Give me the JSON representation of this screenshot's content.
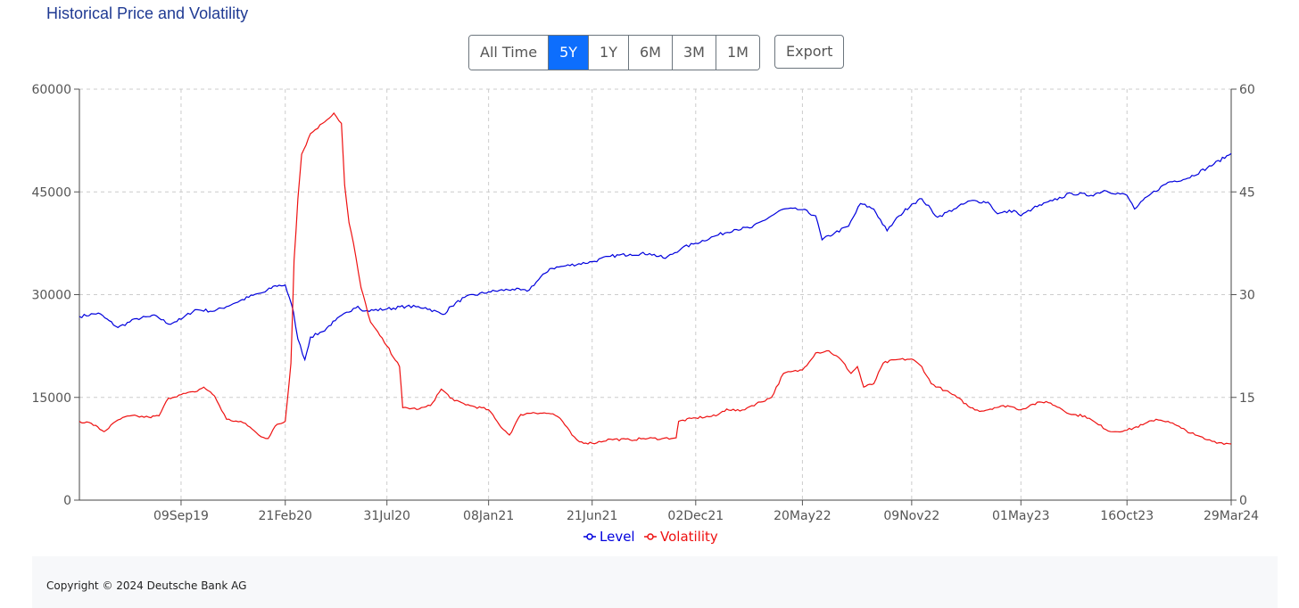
{
  "page": {
    "title": "Historical Price and Volatility",
    "range_buttons": [
      "All Time",
      "5Y",
      "1Y",
      "6M",
      "3M",
      "1M"
    ],
    "active_range": "5Y",
    "export_label": "Export",
    "footer": "Copyright © 2024 Deutsche Bank AG"
  },
  "chart_data": {
    "type": "line",
    "x_tick_labels": [
      "09Sep19",
      "21Feb20",
      "31Jul20",
      "08Jan21",
      "21Jun21",
      "02Dec21",
      "20May22",
      "09Nov22",
      "01May23",
      "16Oct23",
      "29Mar24"
    ],
    "y_left": {
      "ticks": [
        "0",
        "15000",
        "30000",
        "45000",
        "60000"
      ],
      "range": [
        0,
        60000
      ]
    },
    "y_right": {
      "ticks": [
        "0",
        "15",
        "30",
        "45",
        "60"
      ],
      "range": [
        0,
        60
      ]
    },
    "grid": true,
    "legend_position": "bottom-center",
    "colors": {
      "level": "#0000dd",
      "volatility": "#ee1111"
    },
    "series": [
      {
        "name": "Level",
        "axis": "left",
        "points": [
          [
            "2019-04-01",
            26800
          ],
          [
            "2019-05-01",
            27300
          ],
          [
            "2019-06-01",
            25200
          ],
          [
            "2019-07-01",
            26500
          ],
          [
            "2019-08-01",
            26900
          ],
          [
            "2019-08-20",
            25700
          ],
          [
            "2019-09-09",
            26400
          ],
          [
            "2019-10-01",
            27800
          ],
          [
            "2019-11-01",
            27600
          ],
          [
            "2019-12-01",
            28700
          ],
          [
            "2020-01-01",
            29900
          ],
          [
            "2020-01-20",
            30400
          ],
          [
            "2020-02-05",
            31300
          ],
          [
            "2020-02-21",
            31400
          ],
          [
            "2020-03-05",
            27500
          ],
          [
            "2020-03-12",
            23500
          ],
          [
            "2020-03-23",
            20500
          ],
          [
            "2020-04-01",
            23800
          ],
          [
            "2020-04-20",
            24600
          ],
          [
            "2020-05-10",
            26200
          ],
          [
            "2020-06-08",
            28000
          ],
          [
            "2020-06-15",
            28300
          ],
          [
            "2020-06-26",
            27600
          ],
          [
            "2020-07-31",
            27900
          ],
          [
            "2020-08-31",
            28300
          ],
          [
            "2020-09-30",
            28100
          ],
          [
            "2020-10-28",
            27100
          ],
          [
            "2020-11-10",
            28300
          ],
          [
            "2020-12-01",
            29600
          ],
          [
            "2021-01-08",
            30400
          ],
          [
            "2021-02-15",
            30800
          ],
          [
            "2021-03-10",
            30500
          ],
          [
            "2021-04-15",
            33800
          ],
          [
            "2021-05-10",
            34200
          ],
          [
            "2021-06-21",
            34800
          ],
          [
            "2021-07-20",
            35600
          ],
          [
            "2021-08-20",
            35900
          ],
          [
            "2021-09-20",
            36000
          ],
          [
            "2021-10-15",
            35300
          ],
          [
            "2021-11-10",
            36800
          ],
          [
            "2021-12-02",
            37500
          ],
          [
            "2022-01-03",
            38600
          ],
          [
            "2022-02-01",
            39500
          ],
          [
            "2022-03-01",
            39800
          ],
          [
            "2022-04-01",
            41500
          ],
          [
            "2022-04-20",
            42500
          ],
          [
            "2022-05-20",
            42400
          ],
          [
            "2022-06-10",
            41500
          ],
          [
            "2022-06-20",
            38000
          ],
          [
            "2022-07-10",
            39000
          ],
          [
            "2022-08-01",
            40000
          ],
          [
            "2022-08-20",
            43300
          ],
          [
            "2022-09-10",
            42500
          ],
          [
            "2022-10-01",
            39300
          ],
          [
            "2022-10-20",
            41500
          ],
          [
            "2022-11-09",
            43200
          ],
          [
            "2022-11-25",
            44000
          ],
          [
            "2022-12-20",
            41300
          ],
          [
            "2023-01-15",
            42500
          ],
          [
            "2023-02-10",
            43700
          ],
          [
            "2023-03-10",
            43500
          ],
          [
            "2023-03-25",
            41800
          ],
          [
            "2023-04-20",
            42300
          ],
          [
            "2023-05-01",
            41500
          ],
          [
            "2023-05-20",
            42600
          ],
          [
            "2023-06-20",
            43700
          ],
          [
            "2023-07-20",
            44800
          ],
          [
            "2023-08-20",
            44500
          ],
          [
            "2023-09-10",
            45200
          ],
          [
            "2023-10-16",
            44500
          ],
          [
            "2023-10-28",
            42500
          ],
          [
            "2023-11-20",
            44500
          ],
          [
            "2023-12-20",
            46400
          ],
          [
            "2024-01-20",
            47000
          ],
          [
            "2024-02-20",
            48500
          ],
          [
            "2024-03-29",
            50600
          ]
        ]
      },
      {
        "name": "Volatility",
        "axis": "right",
        "points": [
          [
            "2019-04-01",
            11.5
          ],
          [
            "2019-04-20",
            11.2
          ],
          [
            "2019-05-10",
            10.0
          ],
          [
            "2019-06-01",
            11.7
          ],
          [
            "2019-06-20",
            12.3
          ],
          [
            "2019-07-20",
            12.1
          ],
          [
            "2019-08-05",
            12.3
          ],
          [
            "2019-08-20",
            14.9
          ],
          [
            "2019-09-09",
            15.4
          ],
          [
            "2019-10-01",
            15.8
          ],
          [
            "2019-10-15",
            16.5
          ],
          [
            "2019-11-01",
            15.2
          ],
          [
            "2019-11-20",
            11.8
          ],
          [
            "2019-12-20",
            11.2
          ],
          [
            "2020-01-10",
            9.5
          ],
          [
            "2020-01-25",
            9.0
          ],
          [
            "2020-02-05",
            10.8
          ],
          [
            "2020-02-21",
            11.5
          ],
          [
            "2020-03-01",
            20.0
          ],
          [
            "2020-03-06",
            35.0
          ],
          [
            "2020-03-12",
            44.0
          ],
          [
            "2020-03-18",
            50.5
          ],
          [
            "2020-04-01",
            53.5
          ],
          [
            "2020-04-20",
            55.0
          ],
          [
            "2020-05-08",
            56.5
          ],
          [
            "2020-05-20",
            55.0
          ],
          [
            "2020-05-25",
            46.0
          ],
          [
            "2020-06-01",
            40.5
          ],
          [
            "2020-06-08",
            37.5
          ],
          [
            "2020-06-20",
            31.0
          ],
          [
            "2020-07-05",
            26.0
          ],
          [
            "2020-07-31",
            22.5
          ],
          [
            "2020-08-20",
            19.5
          ],
          [
            "2020-08-25",
            13.5
          ],
          [
            "2020-09-20",
            13.3
          ],
          [
            "2020-10-08",
            13.8
          ],
          [
            "2020-10-25",
            16.2
          ],
          [
            "2020-11-15",
            14.5
          ],
          [
            "2020-12-10",
            13.8
          ],
          [
            "2021-01-08",
            13.2
          ],
          [
            "2021-01-25",
            11.0
          ],
          [
            "2021-02-10",
            9.5
          ],
          [
            "2021-02-28",
            12.5
          ],
          [
            "2021-03-20",
            12.8
          ],
          [
            "2021-04-20",
            12.6
          ],
          [
            "2021-05-05",
            11.5
          ],
          [
            "2021-05-20",
            9.5
          ],
          [
            "2021-06-01",
            8.5
          ],
          [
            "2021-06-21",
            8.3
          ],
          [
            "2021-07-20",
            8.9
          ],
          [
            "2021-08-20",
            8.8
          ],
          [
            "2021-09-10",
            9.0
          ],
          [
            "2021-10-10",
            9.0
          ],
          [
            "2021-11-01",
            9.1
          ],
          [
            "2021-11-05",
            11.5
          ],
          [
            "2021-12-02",
            12.0
          ],
          [
            "2022-01-03",
            12.3
          ],
          [
            "2022-01-20",
            13.3
          ],
          [
            "2022-02-10",
            13.0
          ],
          [
            "2022-03-01",
            13.8
          ],
          [
            "2022-04-01",
            15.0
          ],
          [
            "2022-04-20",
            18.5
          ],
          [
            "2022-05-20",
            19.0
          ],
          [
            "2022-06-10",
            21.5
          ],
          [
            "2022-07-01",
            21.8
          ],
          [
            "2022-07-20",
            20.5
          ],
          [
            "2022-08-05",
            18.5
          ],
          [
            "2022-08-15",
            19.5
          ],
          [
            "2022-08-25",
            16.5
          ],
          [
            "2022-09-10",
            17.0
          ],
          [
            "2022-09-25",
            20.0
          ],
          [
            "2022-10-15",
            20.5
          ],
          [
            "2022-11-09",
            20.6
          ],
          [
            "2022-11-25",
            19.5
          ],
          [
            "2022-12-10",
            17.0
          ],
          [
            "2023-01-01",
            16.0
          ],
          [
            "2023-01-20",
            15.0
          ],
          [
            "2023-02-10",
            13.5
          ],
          [
            "2023-02-28",
            13.0
          ],
          [
            "2023-03-20",
            13.5
          ],
          [
            "2023-04-10",
            13.8
          ],
          [
            "2023-05-01",
            13.2
          ],
          [
            "2023-05-20",
            14.0
          ],
          [
            "2023-06-10",
            14.4
          ],
          [
            "2023-07-01",
            13.5
          ],
          [
            "2023-07-20",
            12.5
          ],
          [
            "2023-08-10",
            12.3
          ],
          [
            "2023-09-01",
            11.0
          ],
          [
            "2023-09-20",
            10.0
          ],
          [
            "2023-10-16",
            10.2
          ],
          [
            "2023-11-10",
            11.0
          ],
          [
            "2023-12-01",
            11.8
          ],
          [
            "2023-12-20",
            11.5
          ],
          [
            "2024-01-10",
            10.5
          ],
          [
            "2024-02-01",
            9.5
          ],
          [
            "2024-02-20",
            8.8
          ],
          [
            "2024-03-10",
            8.4
          ],
          [
            "2024-03-29",
            8.2
          ]
        ]
      }
    ]
  }
}
